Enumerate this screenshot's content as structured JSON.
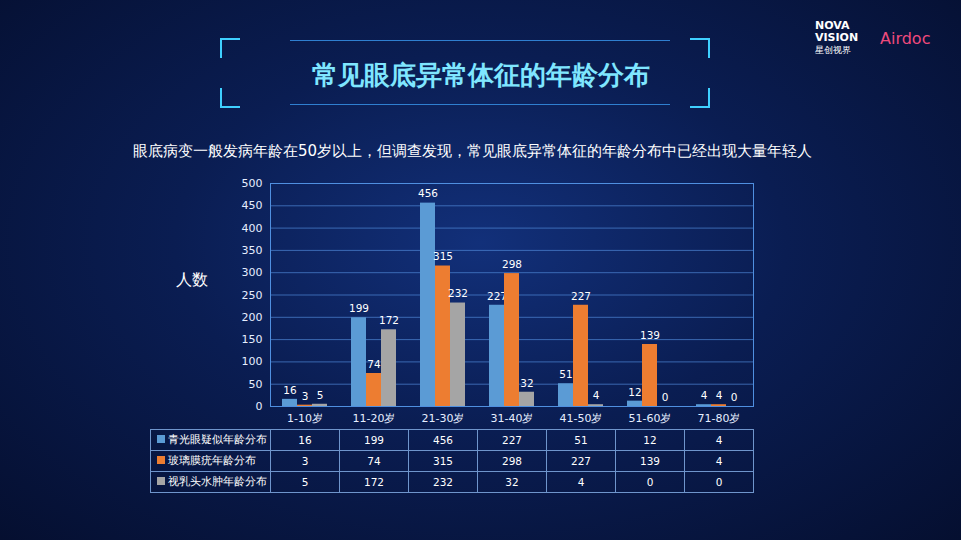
{
  "chart_data": {
    "type": "bar",
    "title": "常见眼底异常体征的年龄分布",
    "subtitle": "眼底病变一般发病年龄在50岁以上，但调查发现，常见眼底异常体征的年龄分布中已经出现大量年轻人",
    "y_label": "人数",
    "categories": [
      "1-10岁",
      "11-20岁",
      "21-30岁",
      "31-40岁",
      "41-50岁",
      "51-60岁",
      "71-80岁"
    ],
    "series": [
      {
        "name": "青光眼疑似年龄分布",
        "color": "#5b9bd5",
        "values": [
          16,
          199,
          456,
          227,
          51,
          12,
          4
        ]
      },
      {
        "name": "玻璃膜疣年龄分布",
        "color": "#ed7d31",
        "values": [
          3,
          74,
          315,
          298,
          227,
          139,
          4
        ]
      },
      {
        "name": "视乳头水肿年龄分布",
        "color": "#a5a5a5",
        "values": [
          5,
          172,
          232,
          32,
          4,
          0,
          0
        ]
      }
    ],
    "ylim": [
      0,
      500
    ],
    "yticks": [
      0,
      50,
      100,
      150,
      200,
      250,
      300,
      350,
      400,
      450,
      500
    ],
    "grid": true,
    "data_labels": true,
    "legend": "bottom"
  },
  "logos": [
    "NOVA VISION",
    "星创视界",
    "Airdoc"
  ]
}
